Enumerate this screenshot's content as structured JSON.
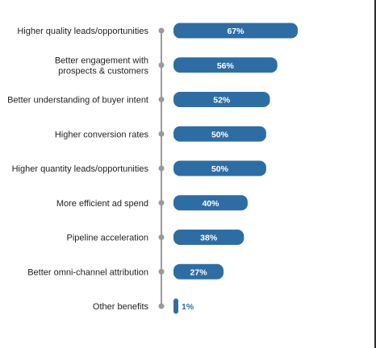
{
  "colors": {
    "bar": "#2e6da4",
    "axis": "#9a9a9a",
    "label": "#1f1f1f",
    "value_outside": "#2e6da4",
    "value_inside": "#ffffff"
  },
  "chart_data": {
    "type": "bar",
    "orientation": "horizontal",
    "categories": [
      [
        "Higher quality leads/opportunities"
      ],
      [
        "Better engagement with",
        "prospects & customers"
      ],
      [
        "Better understanding of buyer intent"
      ],
      [
        "Higher conversion rates"
      ],
      [
        "Higher quantity leads/opportunities"
      ],
      [
        "More efficient ad spend"
      ],
      [
        "Pipeline acceleration"
      ],
      [
        "Better omni-channel attribution"
      ],
      [
        "Other benefits"
      ]
    ],
    "values": [
      67,
      56,
      52,
      50,
      50,
      40,
      38,
      27,
      1
    ],
    "value_labels": [
      "67%",
      "56%",
      "52%",
      "50%",
      "50%",
      "40%",
      "38%",
      "27%",
      "1%"
    ],
    "xlim": [
      0,
      100
    ],
    "grid": false,
    "legend": "none"
  }
}
